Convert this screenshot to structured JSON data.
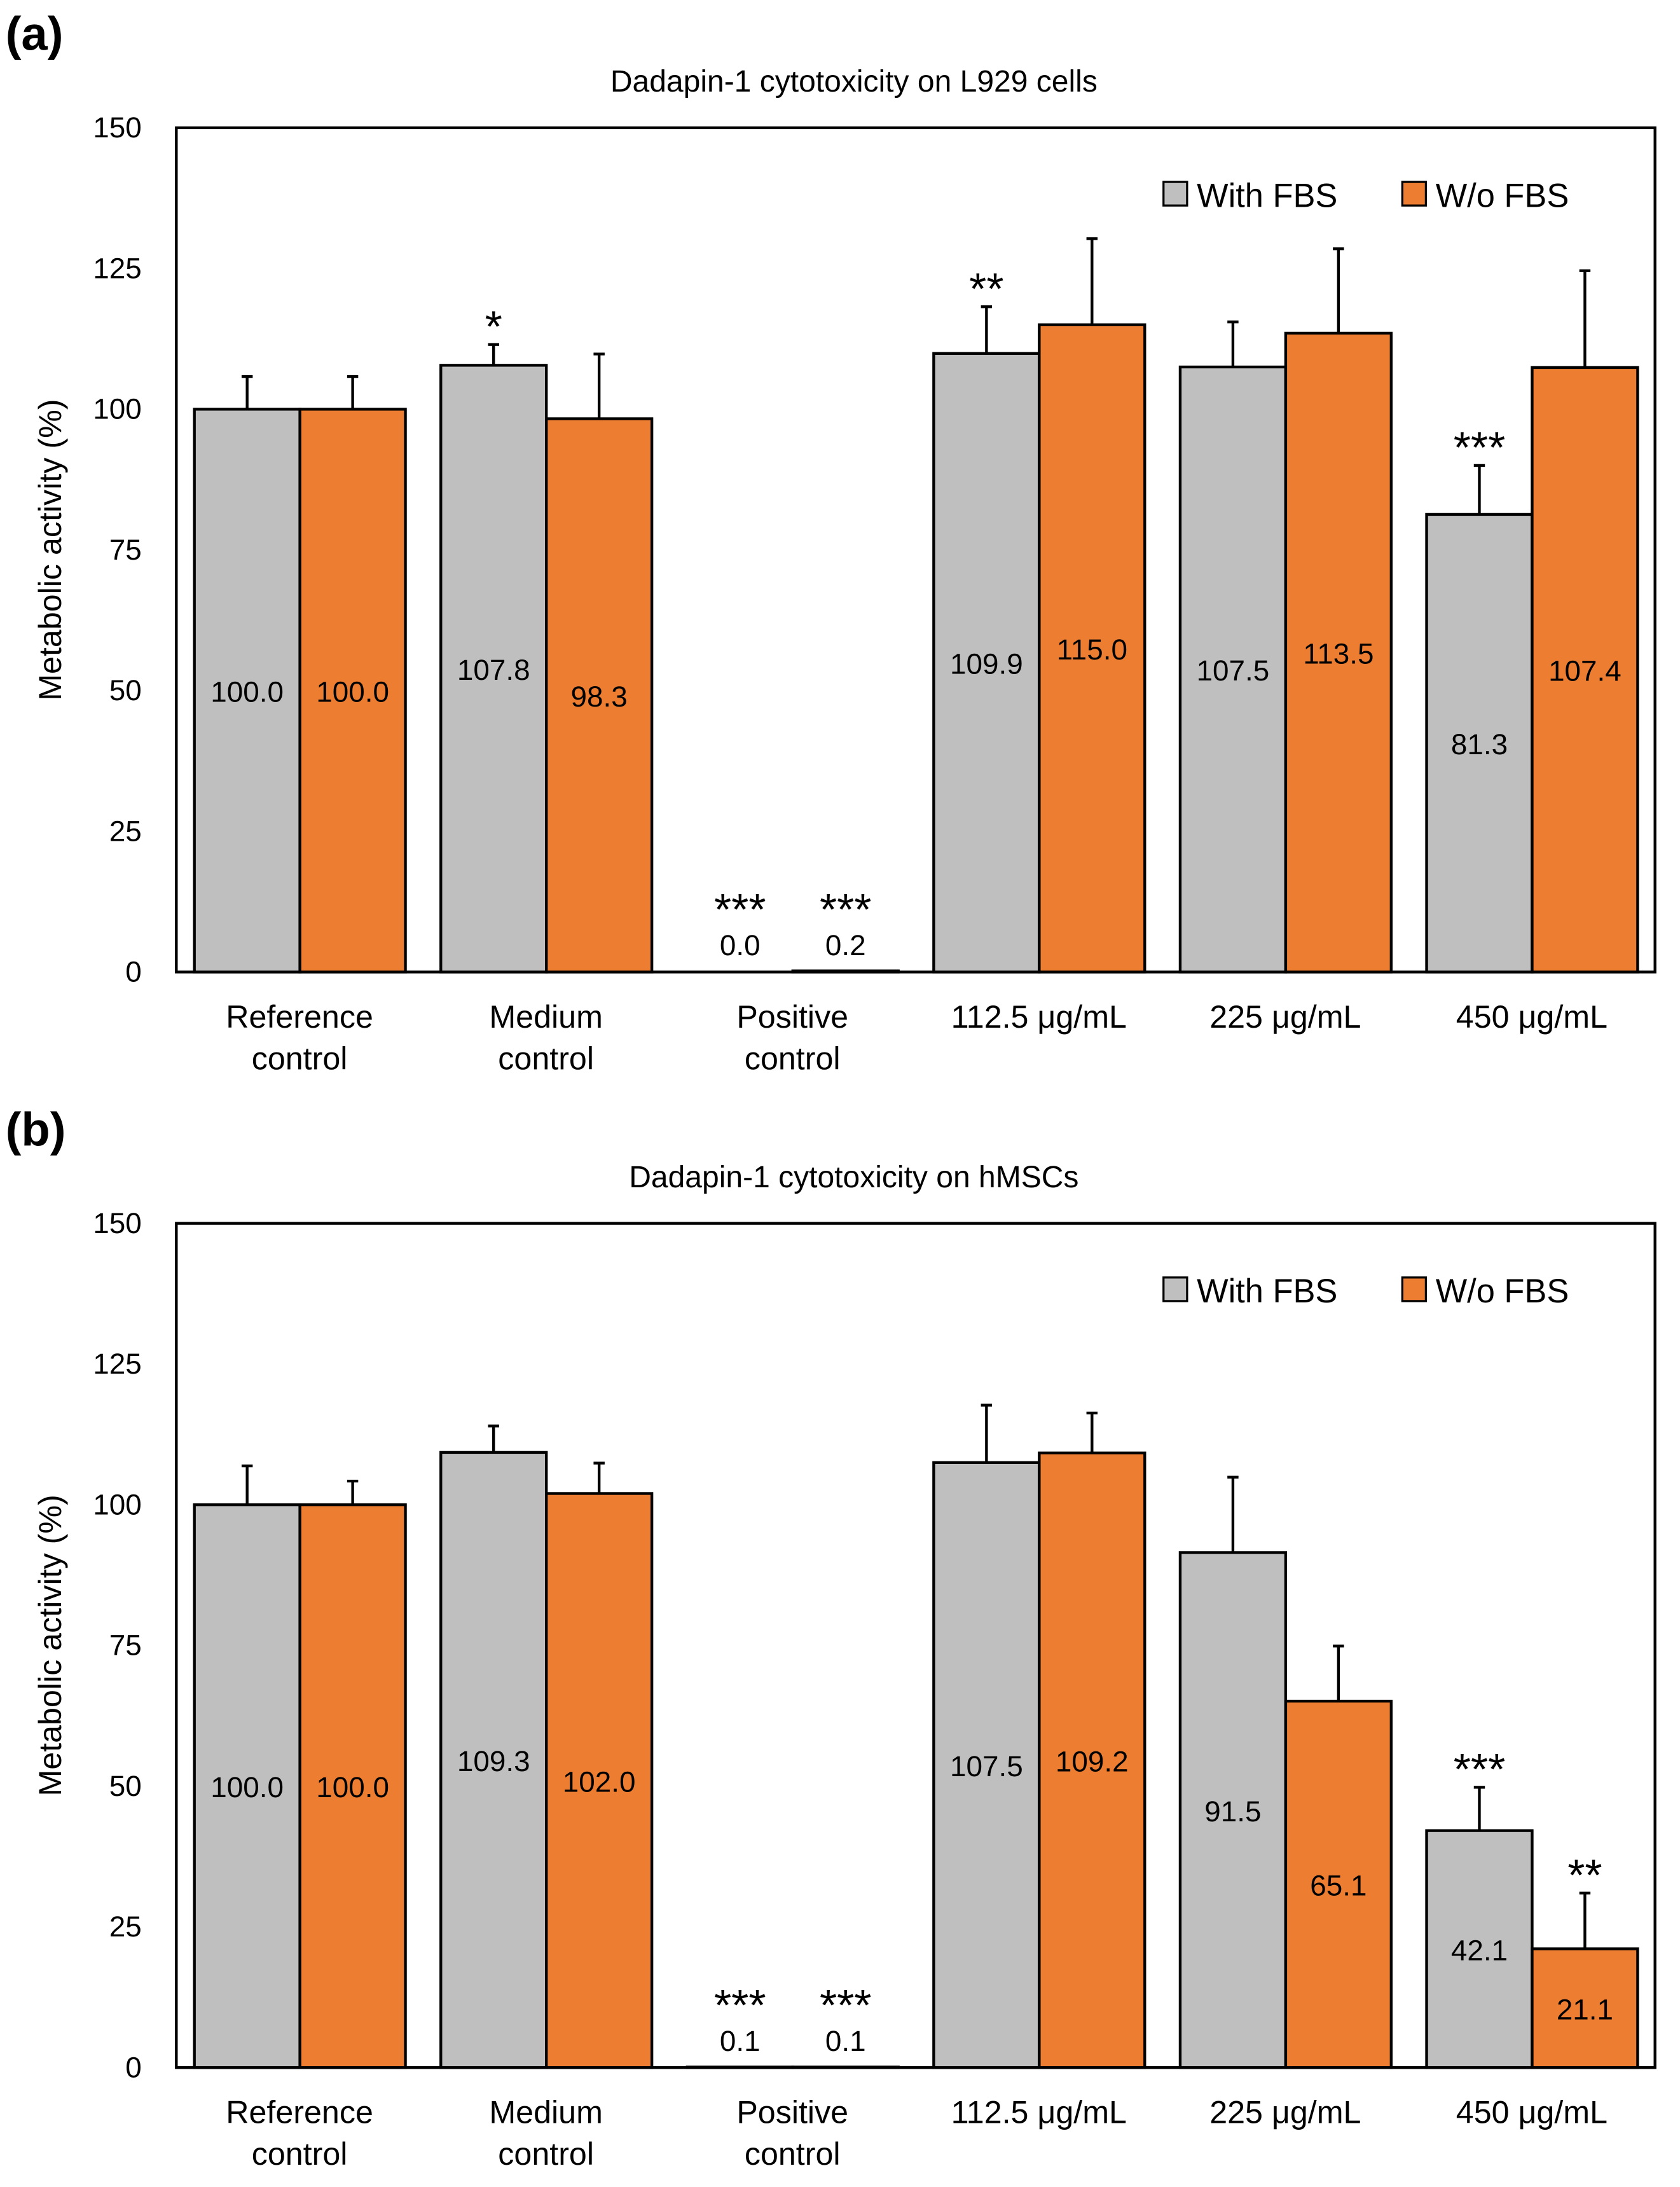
{
  "colors": {
    "with_fbs": "#BFBFBF",
    "wo_fbs": "#ED7D31",
    "axis": "#000000"
  },
  "chart_data": [
    {
      "panel_label": "(a)",
      "type": "bar",
      "title": "Dadapin-1 cytotoxicity on L929 cells",
      "xlabel": "",
      "ylabel": "Metabolic activity (%)",
      "ylim": [
        0,
        150
      ],
      "yticks": [
        "0",
        "25",
        "50",
        "75",
        "100",
        "125",
        "150"
      ],
      "legend_position": "top-right",
      "categories": [
        [
          "Reference",
          "control"
        ],
        [
          "Medium",
          "control"
        ],
        [
          "Positive",
          "control"
        ],
        [
          "112.5 μg/mL"
        ],
        [
          "225 μg/mL"
        ],
        [
          "450 μg/mL"
        ]
      ],
      "series": [
        {
          "name": "With FBS",
          "values": [
            100.0,
            107.8,
            0.0,
            109.9,
            107.5,
            81.3
          ],
          "labels": [
            "100.0",
            "107.8",
            "0.0",
            "109.9",
            "107.5",
            "81.3"
          ],
          "errors": [
            5.8,
            3.7,
            0,
            8.3,
            8.0,
            8.7
          ],
          "significance": [
            "",
            "*",
            "***",
            "**",
            "",
            "***"
          ]
        },
        {
          "name": "W/o FBS",
          "values": [
            100.0,
            98.3,
            0.2,
            115.0,
            113.5,
            107.4
          ],
          "labels": [
            "100.0",
            "98.3",
            "0.2",
            "115.0",
            "113.5",
            "107.4"
          ],
          "errors": [
            5.8,
            11.5,
            0,
            15.3,
            15.0,
            17.2
          ],
          "significance": [
            "",
            "",
            "***",
            "",
            "",
            ""
          ]
        }
      ]
    },
    {
      "panel_label": "(b)",
      "type": "bar",
      "title": "Dadapin-1 cytotoxicity on hMSCs",
      "xlabel": "",
      "ylabel": "Metabolic activity (%)",
      "ylim": [
        0,
        150
      ],
      "yticks": [
        "0",
        "25",
        "50",
        "75",
        "100",
        "125",
        "150"
      ],
      "legend_position": "top-right",
      "categories": [
        [
          "Reference",
          "control"
        ],
        [
          "Medium",
          "control"
        ],
        [
          "Positive",
          "control"
        ],
        [
          "112.5 μg/mL"
        ],
        [
          "225 μg/mL"
        ],
        [
          "450 μg/mL"
        ]
      ],
      "series": [
        {
          "name": "With FBS",
          "values": [
            100.0,
            109.3,
            0.1,
            107.5,
            91.5,
            42.1
          ],
          "labels": [
            "100.0",
            "109.3",
            "0.1",
            "107.5",
            "91.5",
            "42.1"
          ],
          "errors": [
            6.9,
            4.7,
            0,
            10.2,
            13.4,
            7.7
          ],
          "significance": [
            "",
            "",
            "***",
            "",
            "",
            "***"
          ]
        },
        {
          "name": "W/o FBS",
          "values": [
            100.0,
            102.0,
            0.1,
            109.2,
            65.1,
            21.1
          ],
          "labels": [
            "100.0",
            "102.0",
            "0.1",
            "109.2",
            "65.1",
            "21.1"
          ],
          "errors": [
            4.2,
            5.4,
            0,
            7.1,
            9.8,
            9.9
          ],
          "significance": [
            "",
            "",
            "***",
            "",
            "",
            "**"
          ]
        }
      ]
    }
  ]
}
